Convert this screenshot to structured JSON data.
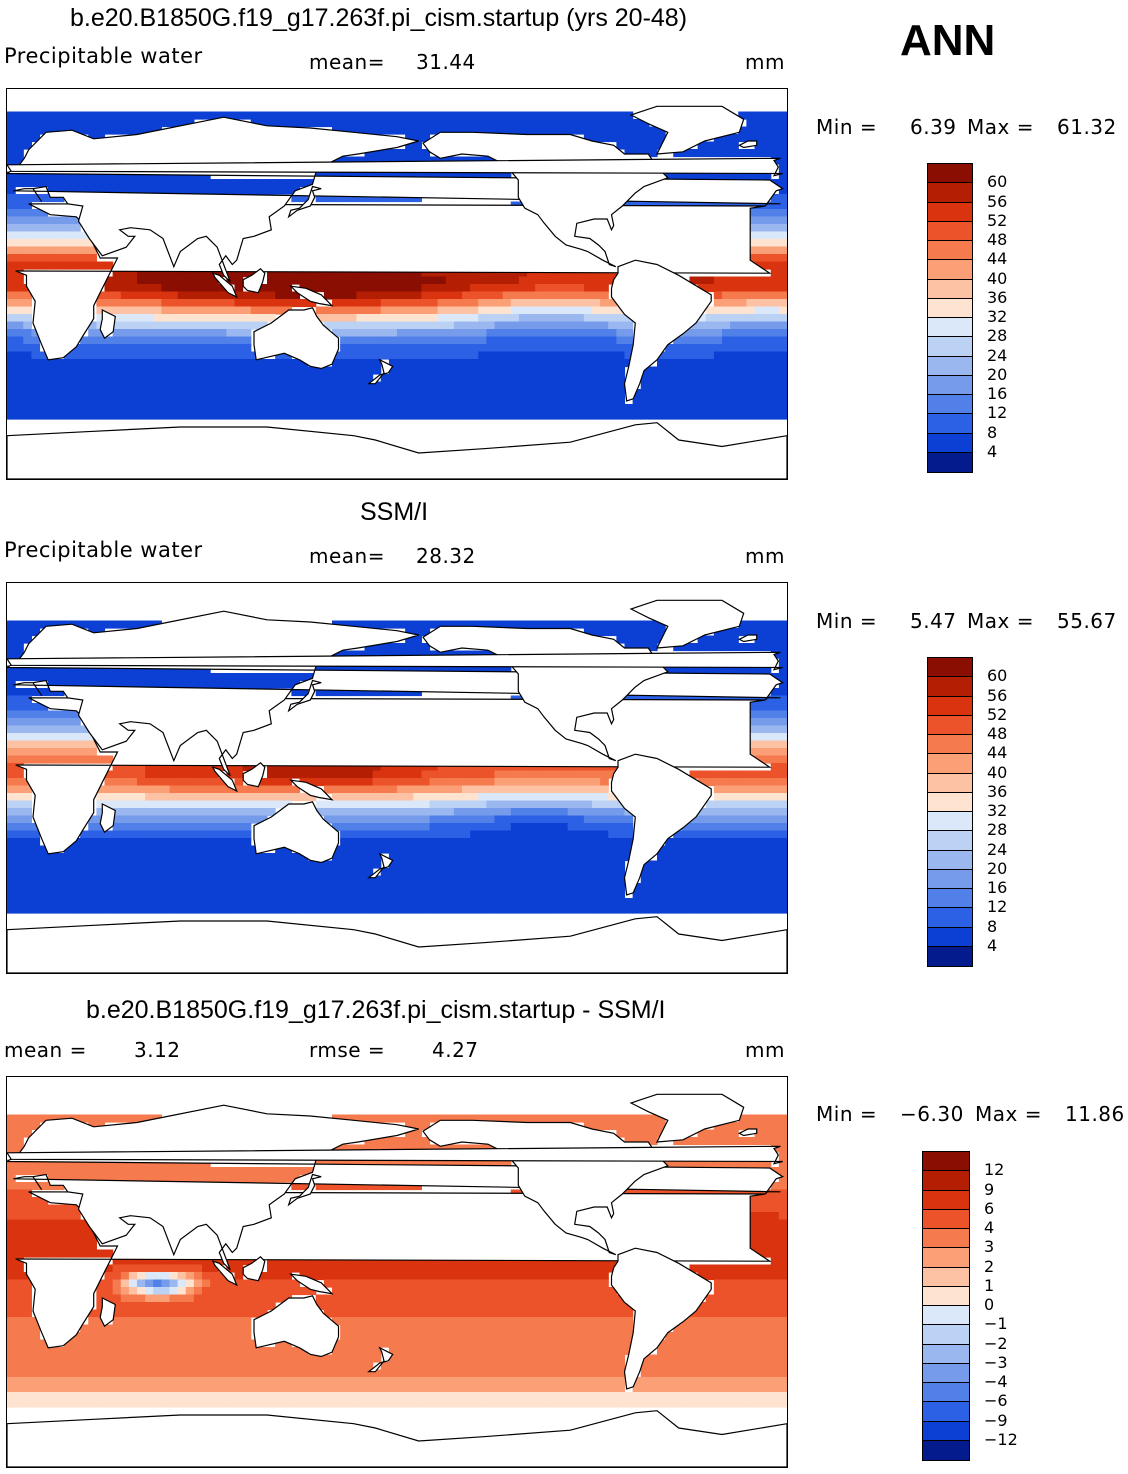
{
  "season": "ANN",
  "units": "mm",
  "colors": {
    "warm": [
      "#fde3d0",
      "#fcc2a3",
      "#fb9f77",
      "#f57a4e",
      "#ec532b",
      "#d9340f",
      "#b41f04",
      "#8a0e01"
    ],
    "cool": [
      "#dbe8fa",
      "#bcd2f5",
      "#9ab8ef",
      "#769bea",
      "#5180e8",
      "#2c61e6",
      "#0c40d5",
      "#041b8e"
    ],
    "land": "#ffffff",
    "coast": "#000000"
  },
  "chart_data": [
    {
      "type": "heatmap",
      "title": "b.e20.B1850G.f19_g17.263f.pi_cism.startup (yrs 20-48)",
      "variable": "Precipitable water",
      "stat1_label": "mean=",
      "stat1_value": "31.44",
      "units": "mm",
      "min_label": "Min =",
      "min_value": "6.39",
      "max_label": "Max =",
      "max_value": "61.32",
      "colorbar_ticks": [
        "60",
        "56",
        "52",
        "48",
        "44",
        "40",
        "36",
        "32",
        "28",
        "24",
        "20",
        "16",
        "12",
        "8",
        "4"
      ]
    },
    {
      "type": "heatmap",
      "title": "SSM/I",
      "variable": "Precipitable water",
      "stat1_label": "mean=",
      "stat1_value": "28.32",
      "units": "mm",
      "min_label": "Min =",
      "min_value": "5.47",
      "max_label": "Max =",
      "max_value": "55.67",
      "colorbar_ticks": [
        "60",
        "56",
        "52",
        "48",
        "44",
        "40",
        "36",
        "32",
        "28",
        "24",
        "20",
        "16",
        "12",
        "8",
        "4"
      ]
    },
    {
      "type": "heatmap",
      "title": "b.e20.B1850G.f19_g17.263f.pi_cism.startup - SSM/I",
      "variable": "",
      "stat1_label": "mean =",
      "stat1_value": "3.12",
      "stat2_label": "rmse =",
      "stat2_value": "4.27",
      "units": "mm",
      "min_label": "Min =",
      "min_value": "−6.30",
      "max_label": "Max =",
      "max_value": "11.86",
      "colorbar_ticks": [
        "12",
        "9",
        "6",
        "4",
        "3",
        "2",
        "1",
        "0",
        "−1",
        "−2",
        "−3",
        "−4",
        "−6",
        "−9",
        "−12"
      ]
    }
  ]
}
